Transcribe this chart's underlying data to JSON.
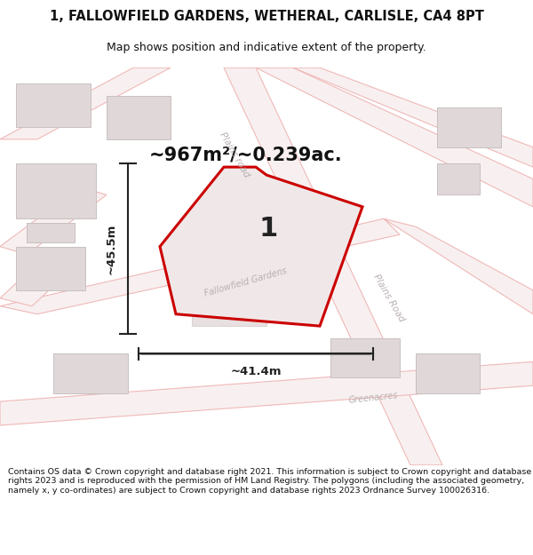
{
  "title": "1, FALLOWFIELD GARDENS, WETHERAL, CARLISLE, CA4 8PT",
  "subtitle": "Map shows position and indicative extent of the property.",
  "area_label": "~967m²/~0.239ac.",
  "plot_number": "1",
  "dim_width": "~41.4m",
  "dim_height": "~45.5m",
  "footer": "Contains OS data © Crown copyright and database right 2021. This information is subject to Crown copyright and database rights 2023 and is reproduced with the permission of HM Land Registry. The polygons (including the associated geometry, namely x, y co-ordinates) are subject to Crown copyright and database rights 2023 Ordnance Survey 100026316.",
  "bg_color": "#ffffff",
  "map_bg": "#ffffff",
  "road_line_color": "#f0b8b8",
  "road_fill_color": "#f8f0f0",
  "building_fill": "#e0d8d8",
  "building_edge": "#c8c0c0",
  "plot_fill": "#f0e8e8",
  "plot_edge": "#cc0000",
  "dim_color": "#222222",
  "road_label_color": "#b8b0b0",
  "title_color": "#111111",
  "footer_color": "#111111",
  "title_fontsize": 10.5,
  "subtitle_fontsize": 9,
  "area_fontsize": 15,
  "plot_num_fontsize": 22,
  "footer_fontsize": 6.8,
  "dim_fontsize": 9.5
}
